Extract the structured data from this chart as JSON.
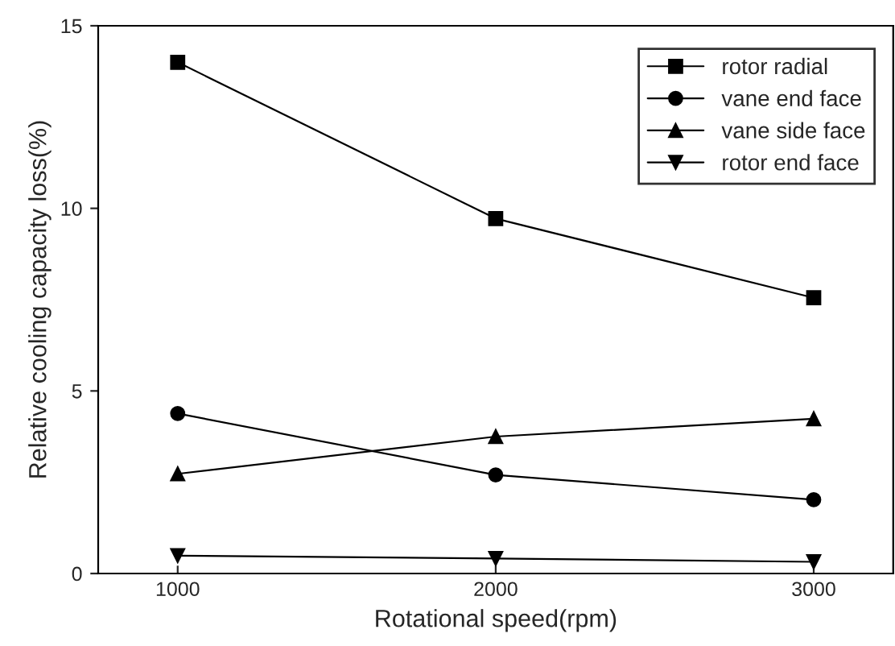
{
  "chart_data": {
    "type": "line",
    "xlabel": "Rotational speed(rpm)",
    "ylabel": "Relative cooling capacity loss(%)",
    "x": [
      1000,
      2000,
      3000
    ],
    "series": [
      {
        "name": "rotor radial",
        "color": "#000000",
        "marker": "square",
        "values": [
          14.0,
          9.72,
          7.55
        ]
      },
      {
        "name": "vane end face",
        "color": "#000000",
        "marker": "circle",
        "values": [
          4.38,
          2.7,
          2.02
        ]
      },
      {
        "name": "vane side face",
        "color": "#000000",
        "marker": "triangle",
        "values": [
          2.73,
          3.75,
          4.24
        ]
      },
      {
        "name": "rotor end face",
        "color": "#000000",
        "marker": "triangle_down",
        "values": [
          0.49,
          0.41,
          0.32
        ]
      }
    ],
    "xlim": [
      750,
      3250
    ],
    "xticks": [
      1000,
      2000,
      3000
    ],
    "ylim": [
      0,
      15
    ],
    "yticks": [
      0,
      5,
      10,
      15
    ],
    "grid": false,
    "legend": "top right",
    "line_style": "solid"
  }
}
